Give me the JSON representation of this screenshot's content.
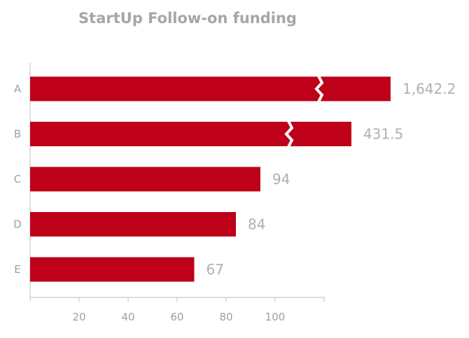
{
  "chart_data": {
    "type": "bar",
    "orientation": "horizontal",
    "title": "StartUp Follow-on funding",
    "categories": [
      "A",
      "B",
      "C",
      "D",
      "E"
    ],
    "values": [
      1642.2,
      431.5,
      94,
      84,
      67
    ],
    "value_labels": [
      "1,642.2",
      "431.5",
      "94",
      "84",
      "67"
    ],
    "axis_breaks": [
      true,
      true,
      false,
      false,
      false
    ],
    "xticks": [
      20,
      40,
      60,
      80,
      100
    ],
    "xlim": [
      0,
      120
    ],
    "xlabel": "",
    "ylabel": "",
    "grid": false,
    "legend": "none",
    "bar_color": "#BE0019"
  }
}
